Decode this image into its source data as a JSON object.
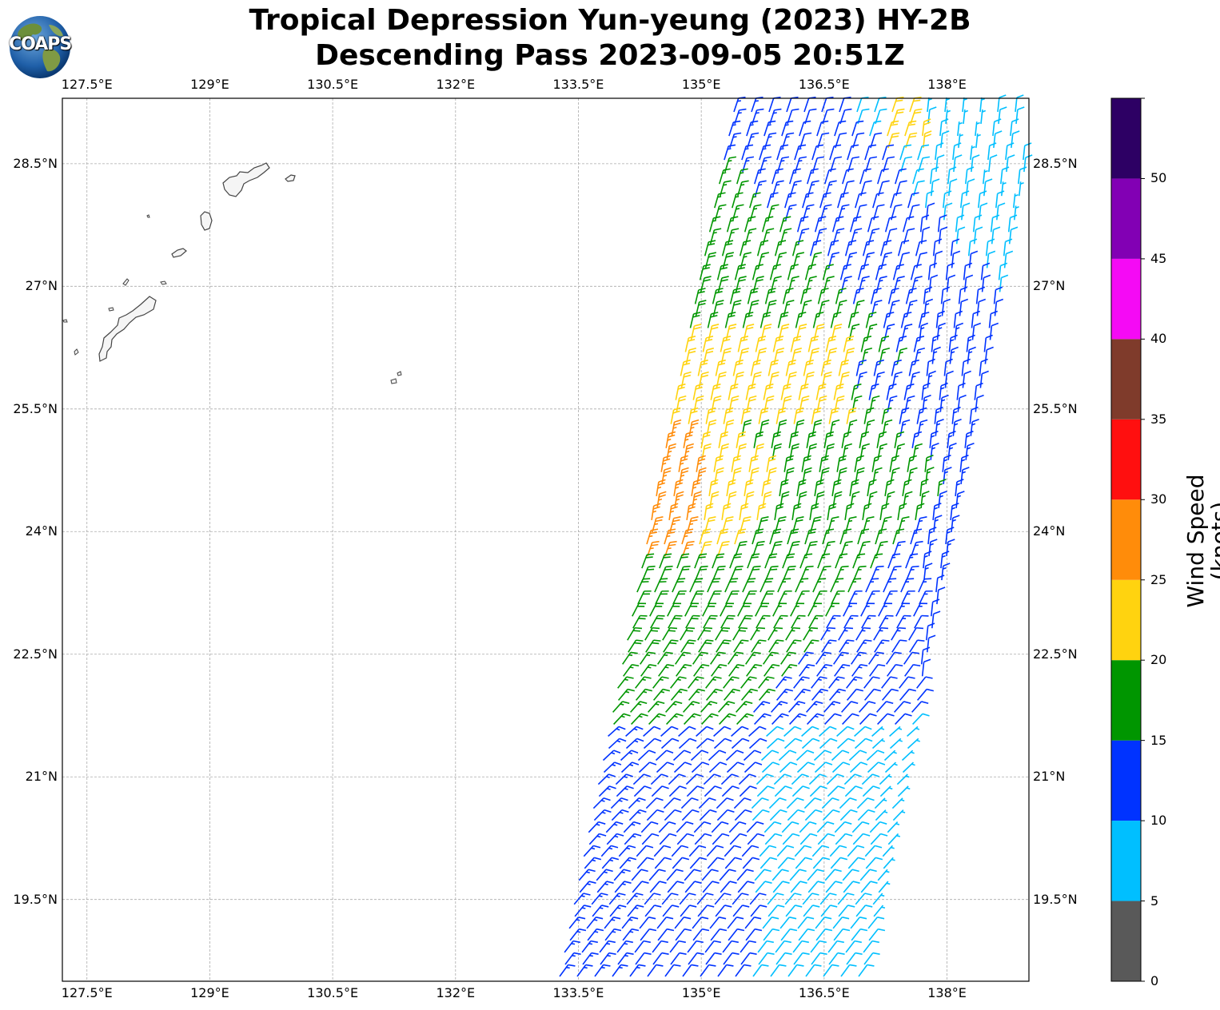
{
  "title": {
    "line1": "Tropical Depression Yun-yeung (2023) HY-2B",
    "line2": "Descending Pass 2023-09-05 20:51Z"
  },
  "logo": {
    "text": "COAPS",
    "icon": "globe-icon"
  },
  "map": {
    "lon_ticks": [
      "127.5°E",
      "129°E",
      "130.5°E",
      "132°E",
      "133.5°E",
      "135°E",
      "136.5°E",
      "138°E"
    ],
    "lat_ticks": [
      "28.5°N",
      "27°N",
      "25.5°N",
      "24°N",
      "22.5°N",
      "21°N",
      "19.5°N"
    ],
    "lon_range": [
      127.2,
      139.0
    ],
    "lat_range": [
      18.5,
      29.3
    ],
    "gridlines": true,
    "grid_style": "dashed gray"
  },
  "colorbar": {
    "title": "Wind Speed (knots)",
    "ticks": [
      "0",
      "5",
      "10",
      "15",
      "20",
      "25",
      "30",
      "35",
      "40",
      "45",
      "50"
    ],
    "bins": [
      {
        "from": 0,
        "to": 5,
        "color": "#595959"
      },
      {
        "from": 5,
        "to": 10,
        "color": "#00bfff"
      },
      {
        "from": 10,
        "to": 15,
        "color": "#0033ff"
      },
      {
        "from": 15,
        "to": 20,
        "color": "#009600"
      },
      {
        "from": 20,
        "to": 25,
        "color": "#ffd30f"
      },
      {
        "from": 25,
        "to": 30,
        "color": "#ff8c0a"
      },
      {
        "from": 30,
        "to": 35,
        "color": "#ff0f0f"
      },
      {
        "from": 35,
        "to": 40,
        "color": "#7f3b2b"
      },
      {
        "from": 40,
        "to": 45,
        "color": "#f50af5"
      },
      {
        "from": 45,
        "to": 50,
        "color": "#8200b4"
      },
      {
        "from": 50,
        "to": 55,
        "color": "#2d0064"
      }
    ]
  }
}
